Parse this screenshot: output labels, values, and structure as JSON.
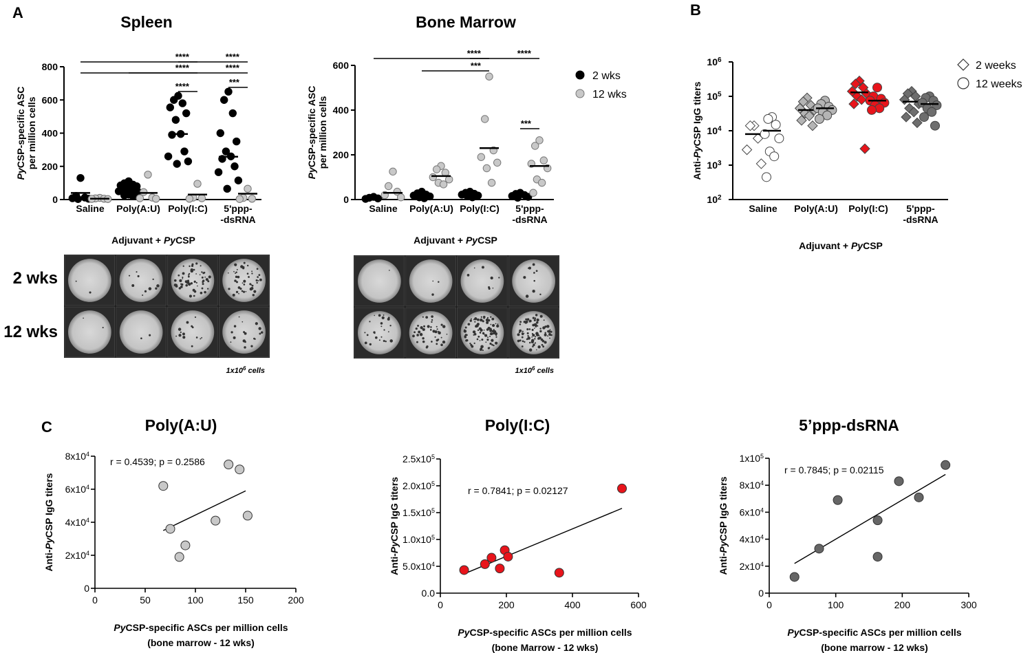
{
  "panel_labels": {
    "a": "A",
    "b": "B",
    "c": "C"
  },
  "colors": {
    "black": "#000000",
    "light_gray": "#c8c8c8",
    "mid_gray": "#9a9a9a",
    "dark_gray": "#666666",
    "red": "#e8141b",
    "white": "#ffffff"
  },
  "elispot": {
    "row_labels": [
      "2 wks",
      "12 wks"
    ],
    "cell_note": "1x10",
    "cell_note_sup": "6",
    "cell_note_tail": " cells",
    "spleen_density": [
      [
        2,
        10,
        60,
        45
      ],
      [
        2,
        2,
        14,
        18
      ]
    ],
    "bm_density": [
      [
        1,
        3,
        8,
        10
      ],
      [
        25,
        45,
        90,
        95
      ]
    ]
  },
  "chart_data": [
    {
      "id": "spleen",
      "type": "scatter",
      "title": "Spleen",
      "ylabel_italic": "Py",
      "ylabel_rest": "CSP-specific ASC",
      "ylabel_line2": "per million cells",
      "xlabel_pre": "Adjuvant + ",
      "xlabel_italic": "Py",
      "xlabel_post": "CSP",
      "categories": [
        "Saline",
        "Poly(A:U)",
        "Poly(I:C)",
        "5'ppp-\n-dsRNA"
      ],
      "ylim": [
        0,
        800
      ],
      "yticks": [
        0,
        200,
        400,
        600,
        800
      ],
      "series": [
        {
          "name": "2 wks",
          "means": [
            40,
            60,
            395,
            258
          ],
          "values": [
            [
              130,
              22,
              12,
              8,
              5,
              3
            ],
            [
              110,
              98,
              90,
              85,
              80,
              74,
              68,
              60,
              56,
              50,
              44,
              40,
              36,
              30,
              25,
              20
            ],
            [
              625,
              600,
              580,
              555,
              520,
              480,
              395,
              390,
              290,
              260,
              230,
              215
            ],
            [
              650,
              600,
              520,
              400,
              350,
              290,
              260,
              245,
              200,
              165,
              115,
              65
            ]
          ]
        },
        {
          "name": "12 wks",
          "means": [
            5,
            40,
            30,
            35
          ],
          "values": [
            [
              10,
              7,
              5,
              4,
              3
            ],
            [
              150,
              45,
              12,
              8,
              5
            ],
            [
              95,
              12,
              8,
              5
            ],
            [
              65,
              10,
              5,
              3
            ]
          ]
        }
      ],
      "significance": [
        {
          "from": 0,
          "to": 2,
          "label": "****"
        },
        {
          "from": 1,
          "to": 2,
          "label": "****"
        },
        {
          "from": 2,
          "to": 3,
          "label": "****"
        },
        {
          "from": 0,
          "to": 3,
          "label": "****"
        },
        {
          "from": 2,
          "to": 2,
          "label": "****"
        },
        {
          "from": 3,
          "to": 3,
          "label": "***"
        }
      ]
    },
    {
      "id": "bone-marrow",
      "type": "scatter",
      "title": "Bone Marrow",
      "ylabel_italic": "Py",
      "ylabel_rest": "CSP-specific ASC",
      "ylabel_line2": "per million cells",
      "xlabel_pre": "Adjuvant + ",
      "xlabel_italic": "Py",
      "xlabel_post": "CSP",
      "categories": [
        "Saline",
        "Poly(A:U)",
        "Poly(I:C)",
        "5'ppp-\n-dsRNA"
      ],
      "ylim": [
        0,
        600
      ],
      "yticks": [
        0,
        200,
        400,
        600
      ],
      "legend": [
        "2 wks",
        "12 wks"
      ],
      "series": [
        {
          "name": "2 wks",
          "means": [
            8,
            15,
            20,
            18
          ],
          "values": [
            [
              12,
              8,
              5,
              3
            ],
            [
              35,
              28,
              22,
              18,
              14,
              10,
              6
            ],
            [
              35,
              30,
              26,
              22,
              18,
              15,
              10
            ],
            [
              30,
              25,
              20,
              16,
              12,
              8
            ]
          ]
        },
        {
          "name": "12 wks",
          "means": [
            30,
            105,
            230,
            150
          ],
          "values": [
            [
              125,
              60,
              35,
              20,
              10
            ],
            [
              150,
              135,
              120,
              100,
              90,
              75,
              68
            ],
            [
              550,
              360,
              220,
              190,
              165,
              140,
              75
            ],
            [
              265,
              240,
              175,
              160,
              140,
              90,
              75,
              30
            ]
          ]
        }
      ],
      "significance": [
        {
          "from": 0,
          "to": 3,
          "label": "****"
        },
        {
          "from": 1,
          "to": 2,
          "label": "***"
        },
        {
          "from": 2,
          "to": 2,
          "label": "****"
        },
        {
          "from": 3,
          "to": 3,
          "label": "***"
        }
      ]
    },
    {
      "id": "igg-titers",
      "type": "scatter",
      "scale": "log",
      "ylabel": "Anti-",
      "ylabel_italic": "Py",
      "ylabel_post": "CSP IgG titers",
      "xlabel_pre": "Adjuvant + ",
      "xlabel_italic": "Py",
      "xlabel_post": "CSP",
      "categories": [
        "Saline",
        "Poly(A:U)",
        "Poly(I:C)",
        "5'ppp-\n-dsRNA"
      ],
      "ylim": [
        100,
        1000000
      ],
      "yticks": [
        {
          "base": "10",
          "exp": "2"
        },
        {
          "base": "10",
          "exp": "3"
        },
        {
          "base": "10",
          "exp": "4"
        },
        {
          "base": "10",
          "exp": "5"
        },
        {
          "base": "10",
          "exp": "6"
        }
      ],
      "legend": [
        "2 weeks",
        "12 weeks"
      ],
      "series": [
        {
          "name": "2 weeks",
          "marker": "diamond",
          "means": [
            8000,
            40000,
            130000,
            70000
          ],
          "values": [
            [
              14000,
              14000,
              6000,
              2800,
              1100
            ],
            [
              90000,
              70000,
              55000,
              45000,
              40000,
              32000,
              27000,
              20000,
              14000
            ],
            [
              280000,
              230000,
              180000,
              140000,
              120000,
              100000,
              80000,
              60000,
              3000
            ],
            [
              140000,
              120000,
              100000,
              80000,
              60000,
              45000,
              35000,
              25000,
              17000
            ]
          ]
        },
        {
          "name": "12 weeks",
          "marker": "circle",
          "means": [
            10000,
            45000,
            75000,
            60000
          ],
          "values": [
            [
              25000,
              22000,
              15000,
              8000,
              6000,
              2500,
              1800,
              450
            ],
            [
              75000,
              60000,
              50000,
              45000,
              40000,
              35000,
              28000,
              22000
            ],
            [
              180000,
              100000,
              85000,
              75000,
              65000,
              55000,
              45000,
              40000
            ],
            [
              100000,
              90000,
              75000,
              65000,
              55000,
              45000,
              35000,
              25000,
              14000
            ]
          ]
        }
      ],
      "colors_by_category": [
        "#ffffff",
        "#b4b4b4",
        "#e8141b",
        "#6e6e6e"
      ]
    },
    {
      "id": "corr-poly-au",
      "type": "scatter",
      "title": "Poly(A:U)",
      "annotation": "r = 0.4539; p = 0.2586",
      "ylabel_pre": "Anti-",
      "ylabel_italic": "Py",
      "ylabel_post": "CSP IgG titers",
      "xlabel_italic": "Py",
      "xlabel_post": "CSP-specific ASCs per million cells",
      "xlabel_line2": "(bone marrow - 12 wks)",
      "xlim": [
        0,
        200
      ],
      "xticks": [
        "0",
        "50",
        "100",
        "150",
        "200"
      ],
      "xtick_values": [
        0,
        50,
        100,
        150,
        200
      ],
      "ylim": [
        0,
        80000
      ],
      "yticks": [
        "0",
        "2x10^4",
        "4x10^4",
        "6x10^4",
        "8x10^4"
      ],
      "ytick_values": [
        0,
        20000,
        40000,
        60000,
        80000
      ],
      "points": [
        [
          68,
          62000
        ],
        [
          75,
          36000
        ],
        [
          84,
          19000
        ],
        [
          90,
          26000
        ],
        [
          120,
          41000
        ],
        [
          133,
          75000
        ],
        [
          144,
          72000
        ],
        [
          152,
          44000
        ]
      ],
      "fit": [
        [
          68,
          35000
        ],
        [
          150,
          59000
        ]
      ],
      "marker_color": "#c8c8c8"
    },
    {
      "id": "corr-poly-ic",
      "type": "scatter",
      "title": "Poly(I:C)",
      "annotation": "r = 0.7841; p = 0.02127",
      "ylabel_pre": "Anti-",
      "ylabel_italic": "Py",
      "ylabel_post": "CSP IgG titers",
      "xlabel_italic": "Py",
      "xlabel_post": "CSP-specific ASCs per million cells",
      "xlabel_line2": "(bone Marrow - 12 wks)",
      "xlim": [
        0,
        600
      ],
      "xticks": [
        "0",
        "200",
        "400",
        "600"
      ],
      "xtick_values": [
        0,
        200,
        400,
        600
      ],
      "ylim": [
        0,
        250000
      ],
      "yticks": [
        "0.0",
        "5.0x10^4",
        "1.0x10^5",
        "1.5x10^5",
        "2.0x10^5",
        "2.5x10^5"
      ],
      "ytick_values": [
        0,
        50000,
        100000,
        150000,
        200000,
        250000
      ],
      "points": [
        [
          72,
          43000
        ],
        [
          135,
          54000
        ],
        [
          155,
          66000
        ],
        [
          180,
          46000
        ],
        [
          195,
          80000
        ],
        [
          205,
          68000
        ],
        [
          360,
          38000
        ],
        [
          550,
          195000
        ]
      ],
      "fit": [
        [
          72,
          36000
        ],
        [
          550,
          158000
        ]
      ],
      "marker_color": "#e8141b"
    },
    {
      "id": "corr-5ppp",
      "type": "scatter",
      "title": "5’ppp-dsRNA",
      "annotation": "r = 0.7845; p = 0.02115",
      "ylabel_pre": "Anti-",
      "ylabel_italic": "Py",
      "ylabel_post": "CSP IgG titers",
      "xlabel_italic": "Py",
      "xlabel_post": "CSP-specific ASCs per million cells",
      "xlabel_line2": "(bone marrow - 12 wks)",
      "xlim": [
        0,
        300
      ],
      "xticks": [
        "0",
        "100",
        "200",
        "300"
      ],
      "xtick_values": [
        0,
        100,
        200,
        300
      ],
      "ylim": [
        0,
        100000
      ],
      "yticks": [
        "0",
        "2x10^4",
        "4x10^4",
        "6x10^4",
        "8x10^4",
        "1x10^5"
      ],
      "ytick_values": [
        0,
        20000,
        40000,
        60000,
        80000,
        100000
      ],
      "points": [
        [
          38,
          12000
        ],
        [
          75,
          33000
        ],
        [
          103,
          69000
        ],
        [
          163,
          27000
        ],
        [
          163,
          54000
        ],
        [
          195,
          83000
        ],
        [
          225,
          71000
        ],
        [
          265,
          95000
        ]
      ],
      "fit": [
        [
          38,
          22000
        ],
        [
          265,
          88000
        ]
      ],
      "marker_color": "#666666"
    }
  ]
}
